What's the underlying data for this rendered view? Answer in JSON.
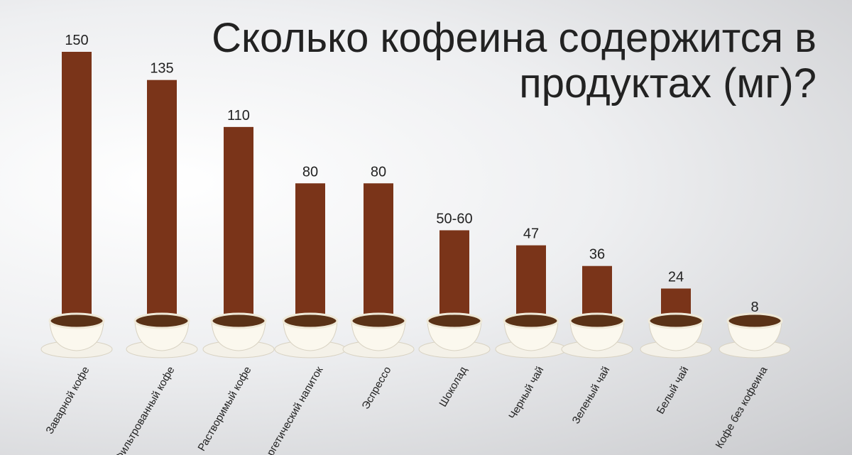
{
  "chart_data": {
    "type": "bar",
    "title": "Сколько кофеина содержится в продуктах (мг)?",
    "categories": [
      "Заварной кофе",
      "Фильтрованный кофе",
      "Растворимый кофе",
      "Энергетический напиток",
      "Эспрессо",
      "Шоколад",
      "Черный чай",
      "Зеленый чай",
      "Белый чай",
      "Кофе без кофеина"
    ],
    "values": [
      150,
      135,
      110,
      80,
      80,
      55,
      47,
      36,
      24,
      8
    ],
    "value_labels": [
      "150",
      "135",
      "110",
      "80",
      "80",
      "50-60",
      "47",
      "36",
      "24",
      "8"
    ],
    "color": "#7a3419",
    "ylim": [
      0,
      150
    ]
  }
}
